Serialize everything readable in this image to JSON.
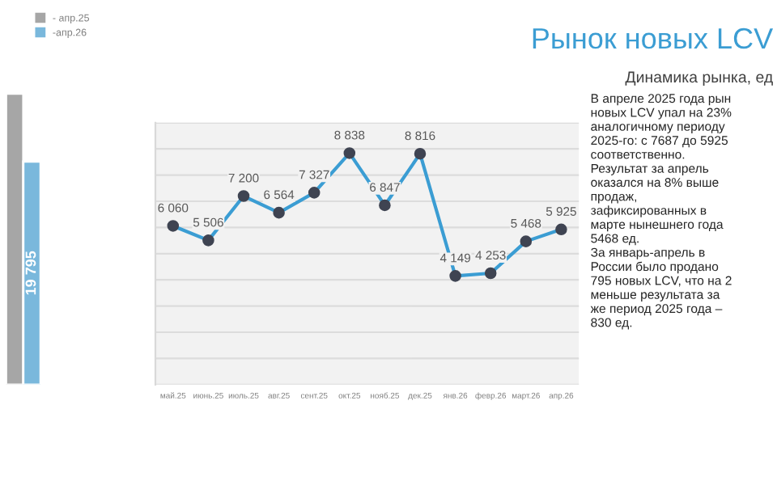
{
  "chart_data": [
    {
      "type": "bar",
      "categories": [
        null
      ],
      "series": [
        {
          "name": "- апр.25",
          "color": "#a6a6a6",
          "values": [
            25830
          ]
        },
        {
          "name": "-апр.26",
          "color": "#7ab8dc",
          "values": [
            19795
          ],
          "value_labels": [
            "19 795"
          ]
        }
      ],
      "tick_labels": false,
      "legend": "top right"
    },
    {
      "type": "line",
      "categories": [
        "май.25",
        "июнь.25",
        "июль.25",
        "авг.25",
        "сент.25",
        "окт.25",
        "нояб.25",
        "дек.25",
        "янв.26",
        "февр.26",
        "март.26",
        "апр.26"
      ],
      "series": [
        {
          "color": "#3b9dd3",
          "values": [
            6060,
            5506,
            7200,
            6564,
            7327,
            8838,
            6847,
            8816,
            4149,
            4253,
            5468,
            5925
          ]
        }
      ],
      "ylim": [
        0,
        10000
      ],
      "yticks": [
        {
          "value": 0,
          "label": null
        },
        {
          "value": 1000,
          "label": null
        },
        {
          "value": 2000,
          "label": null
        },
        {
          "value": 3000,
          "label": null
        },
        {
          "value": 4000,
          "label": null
        },
        {
          "value": 5000,
          "label": null
        },
        {
          "value": 6000,
          "label": null
        },
        {
          "value": 7000,
          "label": null
        },
        {
          "value": 8000,
          "label": null
        },
        {
          "value": 9000,
          "label": null
        },
        {
          "value": 10000,
          "label": null
        }
      ],
      "tick_labels": "x",
      "grid": "y",
      "marker": "circle",
      "line_style": "solid",
      "data_labels": true
    },
    {
      "type": "other",
      "title": "Рынок новых LCV",
      "subtitle": "Динамика рынка, ед",
      "annotations": [
        "В апреле 2025 года рын\nновых LCV упал на 23%\nаналогичному периоду\n2025-го: с 7687 до 5925\nсоответственно.\nРезультат за апрель\nоказался на 8% выше\nпродаж,\nзафиксированных в\nмарте нынешнего года\n5468 ед.\nЗа январь-апрель в\nРоссии было продано\n795 новых LCV, что на 2\nменьше результата за\nже период 2025 года –\n830 ед."
      ]
    }
  ]
}
